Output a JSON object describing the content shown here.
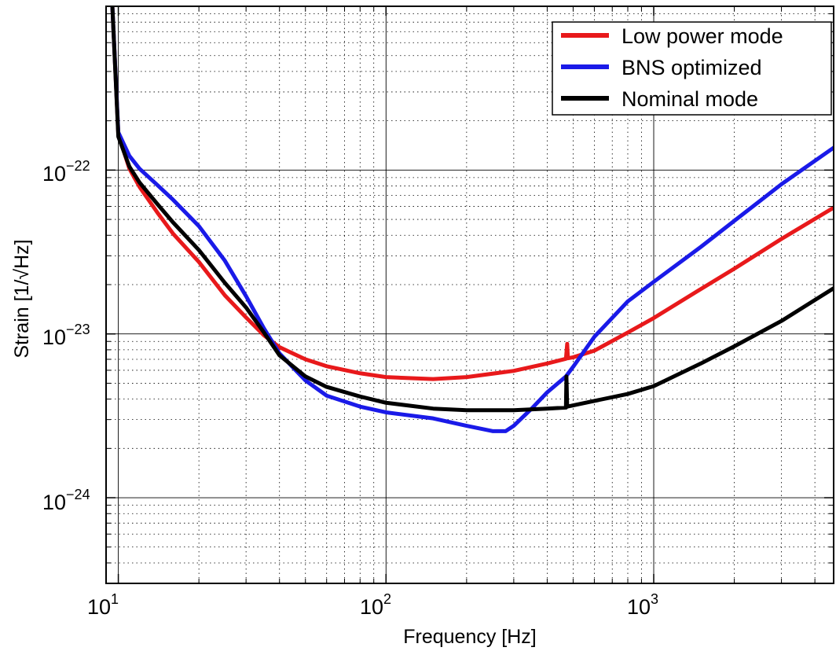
{
  "chart_data": {
    "type": "line",
    "title": "",
    "xlabel": "Frequency [Hz]",
    "ylabel": "Strain [1/√Hz]",
    "xscale": "log",
    "yscale": "log",
    "xlim": [
      9,
      4700
    ],
    "ylim": [
      3e-25,
      1e-21
    ],
    "grid": true,
    "legend_position": "top-right",
    "x_ticks": [
      {
        "base": "10",
        "exp": "1"
      },
      {
        "base": "10",
        "exp": "2"
      },
      {
        "base": "10",
        "exp": "3"
      }
    ],
    "y_ticks": [
      {
        "base": "10",
        "exp": "−22"
      },
      {
        "base": "10",
        "exp": "−23"
      },
      {
        "base": "10",
        "exp": "−24"
      }
    ],
    "series": [
      {
        "name": "Low power mode",
        "color": "#e8191b",
        "points": [
          [
            9.5,
            1e-21
          ],
          [
            10,
            1.65e-22
          ],
          [
            11,
            1.02e-22
          ],
          [
            12,
            7.9e-23
          ],
          [
            14,
            5.5e-23
          ],
          [
            16,
            4.1e-23
          ],
          [
            20,
            2.75e-23
          ],
          [
            25,
            1.72e-23
          ],
          [
            30,
            1.26e-23
          ],
          [
            35,
            9.8e-24
          ],
          [
            40,
            8.3e-24
          ],
          [
            50,
            7e-24
          ],
          [
            60,
            6.35e-24
          ],
          [
            80,
            5.75e-24
          ],
          [
            100,
            5.45e-24
          ],
          [
            150,
            5.3e-24
          ],
          [
            200,
            5.45e-24
          ],
          [
            300,
            5.95e-24
          ],
          [
            400,
            6.6e-24
          ],
          [
            470,
            7.05e-24
          ],
          [
            475,
            8.7e-24
          ],
          [
            478,
            7.1e-24
          ],
          [
            500,
            7.2e-24
          ],
          [
            600,
            7.9e-24
          ],
          [
            800,
            1.02e-23
          ],
          [
            1000,
            1.25e-23
          ],
          [
            1500,
            1.88e-23
          ],
          [
            2000,
            2.5e-23
          ],
          [
            3000,
            3.8e-23
          ],
          [
            4700,
            5.9e-23
          ]
        ]
      },
      {
        "name": "BNS optimized",
        "color": "#1a1ae8",
        "points": [
          [
            9.5,
            1e-21
          ],
          [
            10,
            1.7e-22
          ],
          [
            11,
            1.22e-22
          ],
          [
            12,
            1.02e-22
          ],
          [
            14,
            8.1e-23
          ],
          [
            16,
            6.6e-23
          ],
          [
            20,
            4.55e-23
          ],
          [
            25,
            2.8e-23
          ],
          [
            30,
            1.7e-23
          ],
          [
            35,
            1.08e-23
          ],
          [
            40,
            7.6e-24
          ],
          [
            50,
            5.2e-24
          ],
          [
            60,
            4.2e-24
          ],
          [
            80,
            3.6e-24
          ],
          [
            100,
            3.32e-24
          ],
          [
            150,
            3.05e-24
          ],
          [
            200,
            2.75e-24
          ],
          [
            250,
            2.55e-24
          ],
          [
            280,
            2.55e-24
          ],
          [
            300,
            2.75e-24
          ],
          [
            350,
            3.5e-24
          ],
          [
            400,
            4.4e-24
          ],
          [
            470,
            5.5e-24
          ],
          [
            500,
            6.3e-24
          ],
          [
            600,
            9.6e-24
          ],
          [
            800,
            1.58e-23
          ],
          [
            1000,
            2.08e-23
          ],
          [
            1500,
            3.4e-23
          ],
          [
            2000,
            4.9e-23
          ],
          [
            3000,
            8.2e-23
          ],
          [
            4700,
            1.37e-22
          ]
        ]
      },
      {
        "name": "Nominal mode",
        "color": "#000000",
        "points": [
          [
            9.5,
            1e-21
          ],
          [
            10,
            1.6e-22
          ],
          [
            11,
            1.05e-22
          ],
          [
            12,
            8.4e-23
          ],
          [
            14,
            6.2e-23
          ],
          [
            16,
            4.8e-23
          ],
          [
            20,
            3.25e-23
          ],
          [
            25,
            2.05e-23
          ],
          [
            30,
            1.45e-23
          ],
          [
            35,
            1.02e-23
          ],
          [
            40,
            7.4e-24
          ],
          [
            50,
            5.5e-24
          ],
          [
            60,
            4.75e-24
          ],
          [
            80,
            4.15e-24
          ],
          [
            100,
            3.8e-24
          ],
          [
            150,
            3.5e-24
          ],
          [
            200,
            3.42e-24
          ],
          [
            300,
            3.42e-24
          ],
          [
            400,
            3.5e-24
          ],
          [
            470,
            3.55e-24
          ],
          [
            472,
            5.5e-24
          ],
          [
            475,
            3.6e-24
          ],
          [
            600,
            3.9e-24
          ],
          [
            800,
            4.3e-24
          ],
          [
            1000,
            4.8e-24
          ],
          [
            1500,
            6.6e-24
          ],
          [
            2000,
            8.4e-24
          ],
          [
            3000,
            1.2e-23
          ],
          [
            4700,
            1.9e-23
          ]
        ]
      }
    ]
  }
}
